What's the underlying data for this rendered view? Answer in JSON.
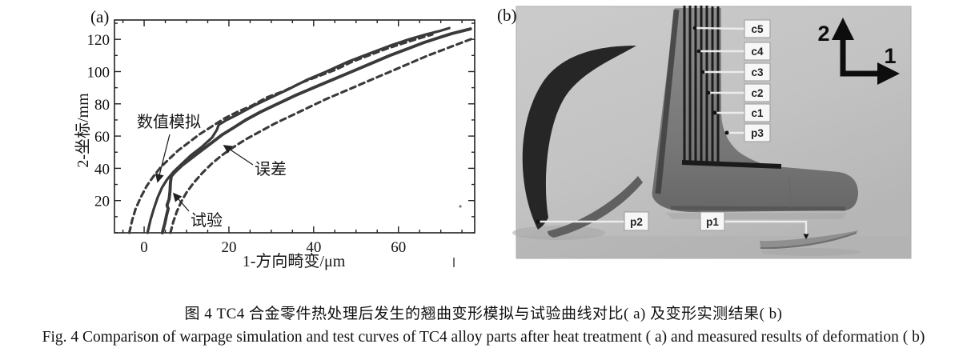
{
  "figure": {
    "panel_a_label": "(a)",
    "panel_b_label": "(b)",
    "caption_zh": "图 4  TC4 合金零件热处理后发生的翘曲变形模拟与试验曲线对比( a) 及变形实测结果( b)",
    "caption_en": "Fig. 4   Comparison of warpage simulation and test curves of TC4 alloy parts after heat treatment ( a)  and measured results of deformation ( b)"
  },
  "colors": {
    "curve": "#3a3a3a",
    "axis": "#222222",
    "photo_background": "#c4c4c4",
    "part_gray": "#7b7b7b",
    "strip_dark": "#252525",
    "label_box": "#f7f7f7"
  },
  "chart_data": {
    "type": "line",
    "title": "",
    "xlabel": "1-方向畸变/μm",
    "ylabel": "2-坐标/mm",
    "xlim": [
      -7,
      78
    ],
    "ylim": [
      0,
      132
    ],
    "x_ticks": [
      0,
      20,
      40,
      60
    ],
    "y_ticks": [
      20,
      40,
      60,
      80,
      100,
      120
    ],
    "x_minor_step": 5,
    "y_minor_step": 10,
    "grid": false,
    "legend_position": "none",
    "annotations": [
      {
        "label": "数值模拟",
        "points_to": "simulation curve",
        "target_xy": [
          3.5,
          28
        ]
      },
      {
        "label": "试验",
        "points_to": "test curve",
        "target_xy": [
          6,
          25
        ]
      },
      {
        "label": "误差",
        "points_to": "error band (dashed)",
        "target_xy": [
          18,
          56
        ]
      }
    ],
    "series": [
      {
        "name": "数值模拟",
        "style": "solid",
        "points": [
          [
            0.8,
            0
          ],
          [
            1.5,
            8
          ],
          [
            2.3,
            15
          ],
          [
            3.2,
            22
          ],
          [
            4.2,
            28
          ],
          [
            5.4,
            33
          ],
          [
            7,
            38
          ],
          [
            9,
            43
          ],
          [
            11,
            48
          ],
          [
            13.5,
            53
          ],
          [
            16,
            59
          ],
          [
            17.2,
            64
          ],
          [
            17.6,
            67
          ],
          [
            19.5,
            70
          ],
          [
            22.5,
            74
          ],
          [
            26,
            79
          ],
          [
            30,
            84
          ],
          [
            34,
            89
          ],
          [
            38.5,
            95
          ],
          [
            43,
            100
          ],
          [
            48,
            106
          ],
          [
            53,
            111
          ],
          [
            58,
            116
          ],
          [
            62.5,
            120
          ],
          [
            66.5,
            123
          ],
          [
            69.5,
            125
          ],
          [
            72,
            127
          ]
        ]
      },
      {
        "name": "试验",
        "style": "solid",
        "points": [
          [
            4.3,
            0
          ],
          [
            4.9,
            6
          ],
          [
            5.3,
            11
          ],
          [
            5.7,
            15
          ],
          [
            5.4,
            17
          ],
          [
            5.9,
            21
          ],
          [
            6.1,
            26
          ],
          [
            6.2,
            31
          ],
          [
            6.4,
            35
          ],
          [
            7.4,
            38
          ],
          [
            9,
            42
          ],
          [
            11,
            46
          ],
          [
            13.5,
            51
          ],
          [
            16,
            56
          ],
          [
            18.5,
            61
          ],
          [
            21,
            65
          ],
          [
            24,
            70
          ],
          [
            27.5,
            75
          ],
          [
            31.5,
            80
          ],
          [
            35.5,
            85
          ],
          [
            40,
            90
          ],
          [
            44.5,
            95
          ],
          [
            49,
            100
          ],
          [
            53.5,
            105
          ],
          [
            58,
            110
          ],
          [
            62,
            114
          ],
          [
            66,
            118
          ],
          [
            69.5,
            121
          ],
          [
            72.5,
            123.5
          ],
          [
            75.5,
            125.5
          ],
          [
            77,
            126.5
          ]
        ]
      },
      {
        "name": "误差 (上界)",
        "style": "dashed",
        "points": [
          [
            -3.5,
            0
          ],
          [
            -2.8,
            8
          ],
          [
            -2,
            15
          ],
          [
            -0.8,
            22
          ],
          [
            0.6,
            29
          ],
          [
            2.2,
            35
          ],
          [
            4,
            41
          ],
          [
            6,
            46
          ],
          [
            8,
            51
          ],
          [
            10.5,
            56
          ],
          [
            13,
            61
          ],
          [
            16,
            66
          ],
          [
            19,
            71
          ],
          [
            22,
            75
          ],
          [
            25.5,
            79
          ],
          [
            29,
            84
          ],
          [
            33,
            88
          ],
          [
            37,
            93
          ],
          [
            41,
            97
          ],
          [
            45,
            101
          ],
          [
            49,
            106
          ],
          [
            53,
            110
          ],
          [
            57,
            114
          ],
          [
            60.5,
            117
          ],
          [
            63.5,
            119.5
          ],
          [
            66,
            121.5
          ],
          [
            68,
            123
          ]
        ]
      },
      {
        "name": "误差 (下界)",
        "style": "dashed",
        "points": [
          [
            6.2,
            0
          ],
          [
            6.9,
            7
          ],
          [
            7.7,
            13
          ],
          [
            8.7,
            19
          ],
          [
            10,
            25
          ],
          [
            11.7,
            31
          ],
          [
            13.7,
            37
          ],
          [
            16,
            43
          ],
          [
            18.3,
            48
          ],
          [
            21,
            53
          ],
          [
            24,
            58
          ],
          [
            27.5,
            63
          ],
          [
            31,
            68
          ],
          [
            35,
            73
          ],
          [
            39,
            78
          ],
          [
            43,
            83
          ],
          [
            47,
            87.5
          ],
          [
            51,
            92
          ],
          [
            55,
            96.5
          ],
          [
            59,
            101
          ],
          [
            63,
            105.5
          ],
          [
            67,
            110
          ],
          [
            70.5,
            113.5
          ],
          [
            73.5,
            116.5
          ],
          [
            76,
            119
          ],
          [
            77.5,
            120.5
          ]
        ]
      }
    ]
  },
  "photo": {
    "axis_vertical": "2",
    "axis_horizontal": "1",
    "point_labels": [
      "c5",
      "c4",
      "c3",
      "c2",
      "c1",
      "p3",
      "p2",
      "p1"
    ]
  }
}
